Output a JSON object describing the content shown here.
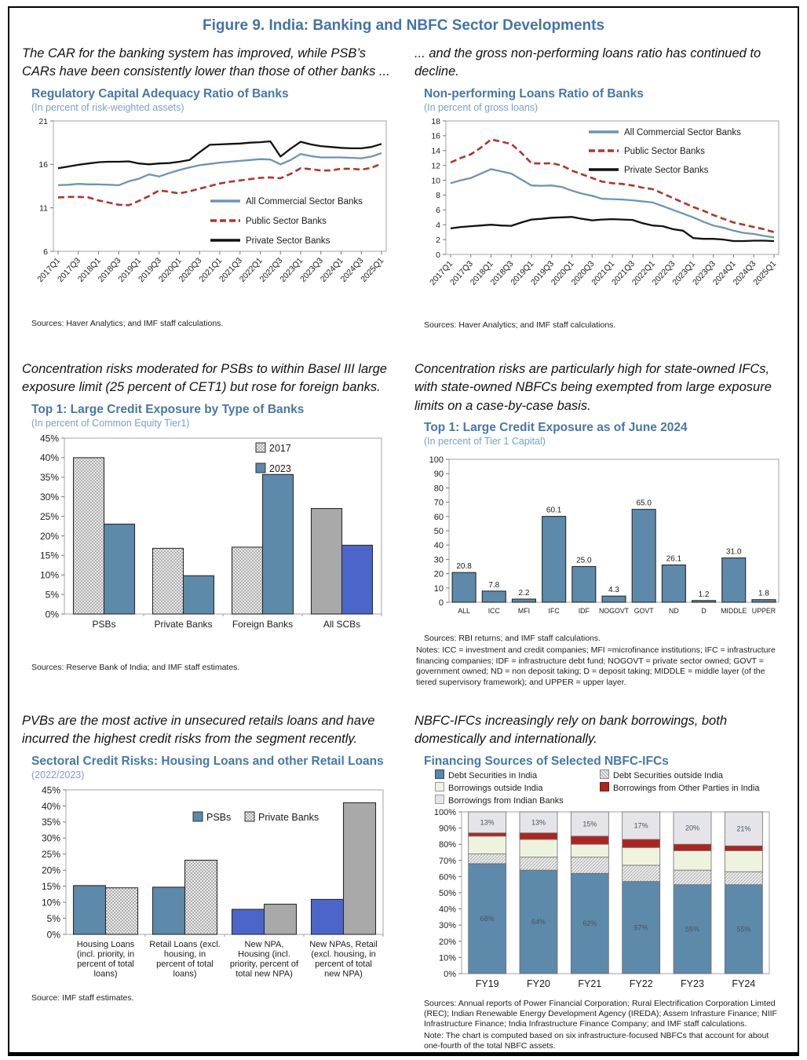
{
  "figure_title": "Figure 9. India: Banking and NBFC Sector Developments",
  "colors": {
    "title_blue": "#4374a6",
    "chart_title_blue": "#4578ab",
    "subtitle_blue": "#7aa0c8",
    "steel_blue": "#5d89ab",
    "royal_blue": "#4c65cb",
    "line_blue": "#6d93b8",
    "line_red": "#b0352b",
    "line_black": "#111111",
    "solid_gray": "#a9a9a9",
    "stack_cream": "#eef3de",
    "stack_red": "#b02420",
    "stack_lightgray": "#e5e5e9"
  },
  "panels": [
    {
      "description": "The CAR for the banking system has improved, while PSB’s CARs have been consistently lower than those of other banks ...",
      "title": "Regulatory Capital Adequacy Ratio of Banks",
      "subtitle": "(In percent of risk-weighted assets)",
      "source": "Sources: Haver Analytics; and IMF staff calculations."
    },
    {
      "description": "... and the gross non-performing loans ratio has continued to decline.",
      "title": "Non-performing Loans Ratio of Banks",
      "subtitle": "(In percent of gross loans)",
      "source": "Sources: Haver Analytics; and IMF staff calculations."
    },
    {
      "description": "Concentration risks moderated for PSBs to within Basel III large exposure limit (25 percent of CET1) but rose for foreign banks.",
      "title": "Top 1: Large Credit Exposure by Type of Banks",
      "subtitle": "(In percent of Common Equity Tier1)",
      "source": "Sources: Reserve Bank of India; and IMF staff estimates."
    },
    {
      "description": "Concentration risks are particularly high for state-owned IFCs, with state-owned NBFCs being exempted from large exposure limits on a case-by-case basis.",
      "title": "Top 1: Large Credit Exposure as of June 2024",
      "subtitle": "(In percent of Tier 1 Capital)",
      "source": "Sources: RBI returns; and IMF staff calculations.",
      "notes": "Notes: ICC = investment and credit companies; MFI =microfinance institutions; IFC = infrastructure financing companies; IDF = infrastructure debt fund; NOGOVT = private sector owned; GOVT = government owned; ND = non deposit taking; D = deposit taking;  MIDDLE = middle layer (of the tiered supervisory framework); and UPPER = upper layer."
    },
    {
      "description": "PVBs are the most active in unsecured retails loans and have incurred the highest credit risks from the segment recently.",
      "title": "Sectoral Credit Risks: Housing Loans and other Retail Loans",
      "subtitle": "(2022/2023)",
      "source": "Source: IMF staff estimates."
    },
    {
      "description": "NBFC-IFCs increasingly rely on bank borrowings, both domestically and internationally.",
      "title": "Financing Sources of Selected NBFC-IFCs",
      "subtitle": "",
      "source": "Sources: Annual reports of Power Financial Corporation; Rural Electrification Corporation Limted (REC); Indian Renewable Energy Development Agency (IREDA); Assem Infrasture Finance; NIIF Infrastructure Finance; India Infrastructure Finance Company; and IMF staff calculations.",
      "note": "Note: The chart is computed based on six infrastructure-focused NBFCs that account for about one-fourth of the total NBFC assets."
    }
  ],
  "chart_data": [
    {
      "type": "line",
      "title": "Regulatory Capital Adequacy Ratio of Banks",
      "ylabel": "Percent of risk-weighted assets",
      "ylim": [
        6,
        21
      ],
      "yticks": [
        6,
        11,
        16,
        21
      ],
      "x_labels": [
        "2017Q1",
        "2017Q3",
        "2018Q1",
        "2018Q3",
        "2019Q1",
        "2019Q3",
        "2020Q1",
        "2020Q3",
        "2021Q1",
        "2021Q3",
        "2022Q1",
        "2022Q3",
        "2023Q1",
        "2023Q3",
        "2024Q1",
        "2024Q3",
        "2025Q1"
      ],
      "label_every": 2,
      "legend_position": "inside-lower-right",
      "series": [
        {
          "name": "All Commercial Sector Banks",
          "color": "#6d93b8",
          "style": "solid",
          "values": [
            13.6,
            13.65,
            13.75,
            13.7,
            13.7,
            13.65,
            13.6,
            14.05,
            14.35,
            14.85,
            14.6,
            15.0,
            15.35,
            15.65,
            15.9,
            16.05,
            16.2,
            16.3,
            16.4,
            16.5,
            16.6,
            16.55,
            16.0,
            16.5,
            17.2,
            16.95,
            16.8,
            16.8,
            16.8,
            16.75,
            16.7,
            16.9,
            17.3
          ]
        },
        {
          "name": "Public Sector Banks",
          "color": "#b0352b",
          "style": "dashed",
          "values": [
            12.2,
            12.25,
            12.25,
            12.2,
            11.85,
            11.6,
            11.35,
            11.3,
            11.8,
            12.35,
            13.0,
            12.85,
            12.65,
            12.9,
            13.2,
            13.5,
            13.8,
            14.0,
            14.15,
            14.3,
            14.45,
            14.5,
            14.4,
            14.9,
            15.55,
            15.45,
            15.3,
            15.3,
            15.5,
            15.5,
            15.4,
            15.6,
            16.1
          ]
        },
        {
          "name": "Private Sector Banks",
          "color": "#111111",
          "style": "solid",
          "values": [
            15.55,
            15.75,
            15.95,
            16.1,
            16.25,
            16.3,
            16.3,
            16.35,
            16.1,
            16.0,
            16.1,
            16.15,
            16.3,
            16.5,
            17.4,
            18.25,
            18.3,
            18.35,
            18.4,
            18.5,
            18.55,
            18.65,
            16.9,
            17.8,
            18.6,
            18.3,
            18.1,
            18.0,
            17.9,
            17.85,
            17.85,
            18.0,
            18.35
          ]
        }
      ]
    },
    {
      "type": "line",
      "title": "Non-performing Loans Ratio of Banks",
      "ylabel": "Percent of gross loans",
      "ylim": [
        0,
        18
      ],
      "yticks": [
        0,
        2,
        4,
        6,
        8,
        10,
        12,
        14,
        16,
        18
      ],
      "x_labels": [
        "2017Q1",
        "2017Q3",
        "2018Q1",
        "2018Q3",
        "2019Q1",
        "2019Q3",
        "2020Q1",
        "2020Q3",
        "2021Q1",
        "2021Q3",
        "2022Q1",
        "2022Q3",
        "2023Q1",
        "2023Q3",
        "2024Q1",
        "2024Q3",
        "2025Q1"
      ],
      "label_every": 2,
      "legend_position": "inside-upper-right",
      "series": [
        {
          "name": "All Commercial Sector Banks",
          "color": "#6d93b8",
          "style": "solid",
          "values": [
            9.6,
            10.0,
            10.3,
            10.9,
            11.5,
            11.2,
            10.9,
            10.1,
            9.3,
            9.25,
            9.3,
            9.1,
            8.6,
            8.2,
            7.9,
            7.5,
            7.45,
            7.4,
            7.3,
            7.15,
            7.0,
            6.5,
            6.0,
            5.5,
            5.0,
            4.4,
            3.9,
            3.6,
            3.2,
            2.9,
            2.75,
            2.5,
            2.3
          ]
        },
        {
          "name": "Public Sector Banks",
          "color": "#b0352b",
          "style": "dashed",
          "values": [
            12.4,
            13.0,
            13.5,
            14.4,
            15.5,
            15.2,
            14.9,
            13.7,
            12.3,
            12.25,
            12.3,
            12.0,
            11.3,
            10.8,
            10.3,
            9.8,
            9.6,
            9.5,
            9.3,
            9.0,
            8.8,
            8.2,
            7.6,
            7.0,
            6.4,
            5.9,
            5.3,
            4.8,
            4.3,
            4.0,
            3.7,
            3.4,
            3.0
          ]
        },
        {
          "name": "Private Sector Banks",
          "color": "#111111",
          "style": "solid",
          "values": [
            3.5,
            3.7,
            3.8,
            3.9,
            4.0,
            3.9,
            3.85,
            4.3,
            4.7,
            4.8,
            4.95,
            5.0,
            5.05,
            4.8,
            4.6,
            4.7,
            4.75,
            4.7,
            4.65,
            4.2,
            3.9,
            3.8,
            3.4,
            3.2,
            2.2,
            2.1,
            2.1,
            2.0,
            1.8,
            1.8,
            1.85,
            1.85,
            1.8
          ]
        }
      ]
    },
    {
      "type": "bar",
      "title": "Top 1: Large Credit Exposure by Type of Banks",
      "ylabel": "Percent of Common Equity Tier1",
      "ylim": [
        0,
        45
      ],
      "ytick_step": 5,
      "categories": [
        "PSBs",
        "Private Banks",
        "Foreign Banks",
        "All SCBs"
      ],
      "series": [
        {
          "name": "2017",
          "values": [
            40,
            16.8,
            17.1,
            27
          ]
        },
        {
          "name": "2023",
          "values": [
            23,
            9.8,
            35.7,
            17.6
          ]
        }
      ],
      "bar_styles": {
        "2017": [
          "hatch",
          "hatch",
          "hatch",
          "gray"
        ],
        "2023": [
          "steel",
          "steel",
          "steel",
          "royal"
        ]
      },
      "legend_styles": [
        "hatch",
        "steel"
      ]
    },
    {
      "type": "bar",
      "title": "Top 1: Large Credit Exposure as of June 2024",
      "ylabel": "Percent of Tier 1 Capital",
      "ylim": [
        0,
        100
      ],
      "ytick_step": 10,
      "categories": [
        "ALL",
        "ICC",
        "MFI",
        "IFC",
        "IDF",
        "NOGOVT",
        "GOVT",
        "ND",
        "D",
        "MIDDLE",
        "UPPER"
      ],
      "values": [
        20.8,
        7.8,
        2.2,
        60.1,
        25.0,
        4.3,
        65.0,
        26.1,
        1.2,
        31.0,
        1.8
      ],
      "data_labels": [
        "20.8",
        "7.8",
        "2.2",
        "60.1",
        "25.0",
        "4.3",
        "65.0",
        "26.1",
        "1.2",
        "31.0",
        "1.8"
      ]
    },
    {
      "type": "bar",
      "title": "Sectoral Credit Risks: Housing Loans and other Retail Loans",
      "ylim": [
        0,
        45
      ],
      "ytick_step": 5,
      "categories": [
        [
          "Housing Loans",
          "(incl. priority, in",
          "percent of total",
          "loans)"
        ],
        [
          "Retail Loans (excl.",
          "housing, in",
          "percent of total",
          "loans)"
        ],
        [
          "New NPA,",
          "Housing (incl.",
          "priority, percent of",
          "total new NPA)"
        ],
        [
          "New NPAs, Retail",
          "(excl. housing, in",
          "percent of total",
          "new NPA)"
        ]
      ],
      "series": [
        {
          "name": "PSBs",
          "values": [
            15.2,
            14.7,
            7.8,
            10.9
          ]
        },
        {
          "name": "Private Banks",
          "values": [
            14.5,
            23.1,
            9.4,
            41.0
          ]
        }
      ],
      "bar_styles": {
        "PSBs": [
          "steel",
          "steel",
          "royal",
          "royal"
        ],
        "Private Banks": [
          "hatch",
          "hatch",
          "gray",
          "gray"
        ]
      },
      "legend_styles": [
        "steel",
        "hatch"
      ]
    },
    {
      "type": "stacked-bar",
      "title": "Financing Sources of Selected NBFC-IFCs",
      "ylim": [
        0,
        100
      ],
      "ytick_step": 10,
      "categories": [
        "FY19",
        "FY20",
        "FY21",
        "FY22",
        "FY23",
        "FY24"
      ],
      "series": [
        {
          "name": "Debt Securities in India",
          "style": "steel",
          "values": [
            68,
            64,
            62,
            57,
            55,
            55
          ],
          "labels": [
            "68%",
            "64%",
            "62%",
            "57%",
            "55%",
            "55%"
          ]
        },
        {
          "name": "Debt Securities outside India",
          "style": "dot",
          "values": [
            6,
            8,
            10,
            10,
            9,
            8
          ]
        },
        {
          "name": "Borrowings outside India",
          "style": "cream",
          "values": [
            11,
            11,
            8,
            11,
            12,
            13
          ]
        },
        {
          "name": "Borrowings from Other Parties in India",
          "style": "red",
          "values": [
            2,
            4,
            5,
            5,
            4,
            3
          ]
        },
        {
          "name": "Borrowings from Indian Banks",
          "style": "lgray",
          "values": [
            13,
            13,
            15,
            17,
            20,
            21
          ],
          "labels": [
            "13%",
            "13%",
            "15%",
            "17%",
            "20%",
            "21%"
          ]
        }
      ]
    }
  ]
}
